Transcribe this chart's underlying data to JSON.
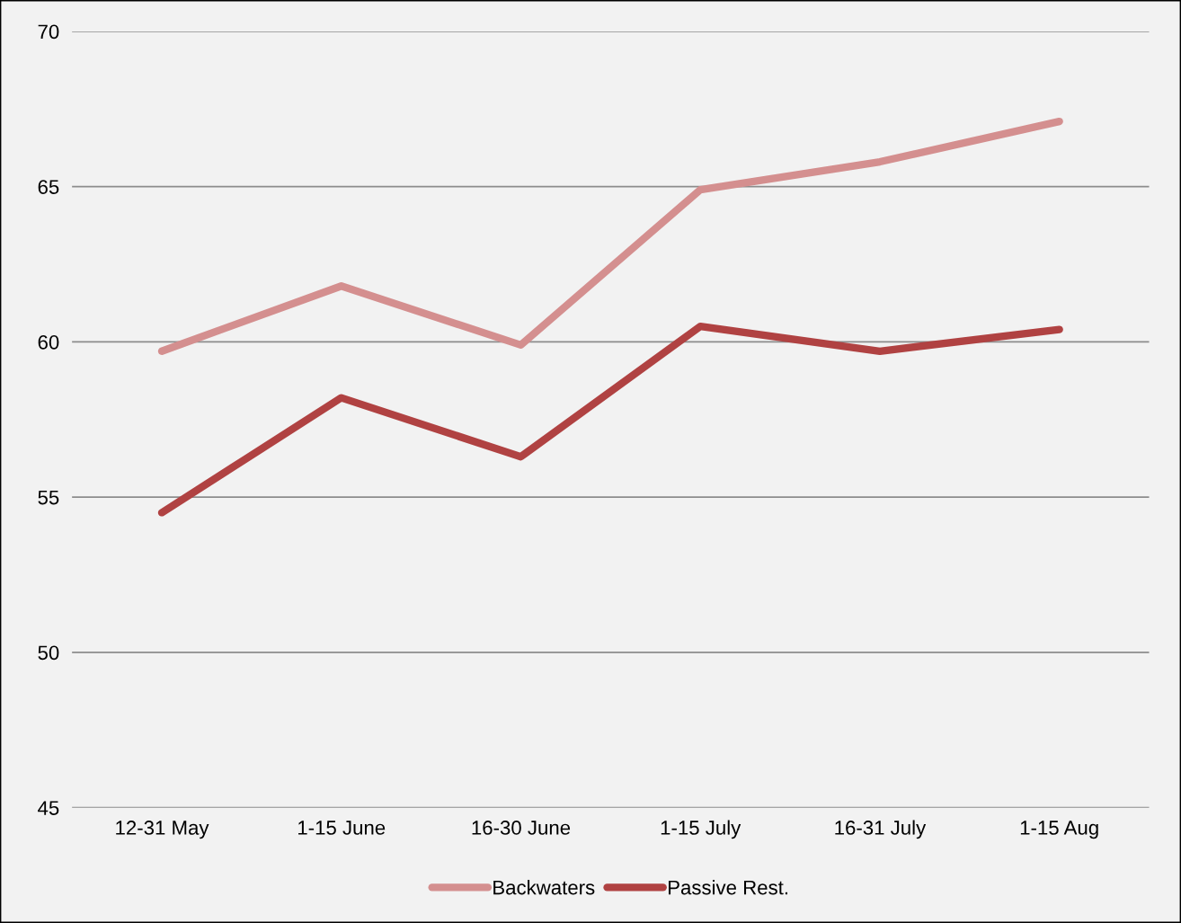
{
  "chart_data": {
    "type": "line",
    "categories": [
      "12-31 May",
      "1-15 June",
      "16-30 June",
      "1-15 July",
      "16-31 July",
      "1-15 Aug"
    ],
    "series": [
      {
        "name": "Backwaters",
        "color": "#d48f8f",
        "values": [
          59.7,
          61.8,
          59.9,
          64.9,
          65.8,
          67.1
        ]
      },
      {
        "name": "Passive Rest.",
        "color": "#b04242",
        "values": [
          54.5,
          58.2,
          56.3,
          60.5,
          59.7,
          60.4
        ]
      }
    ],
    "ylim": [
      45,
      70
    ],
    "yticks": [
      45,
      50,
      55,
      60,
      65,
      70
    ],
    "grid": "y",
    "legend": "bottom",
    "marker": "none",
    "line_style": "solid"
  }
}
